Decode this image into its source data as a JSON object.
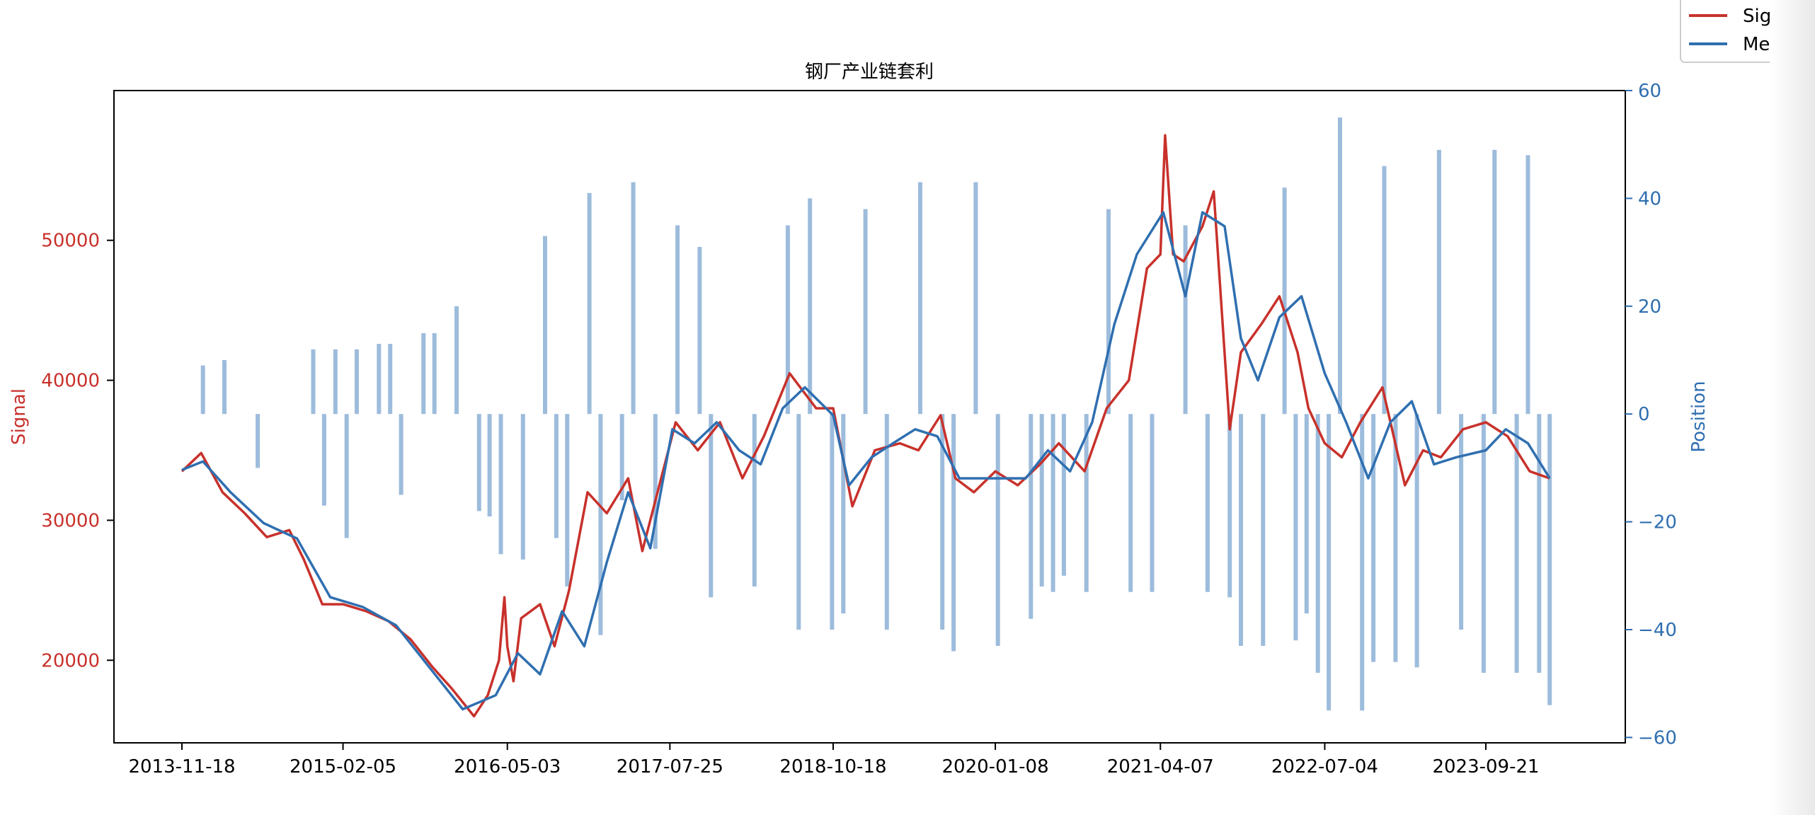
{
  "chart_data": {
    "type": "line",
    "title": "钢厂产业链套利",
    "ylabel": "Signal",
    "y2label": "Position",
    "ylim": [
      14100,
      60700
    ],
    "y2lim": [
      -61,
      60
    ],
    "y_ticks": [
      "20000",
      "30000",
      "40000",
      "50000"
    ],
    "y2_ticks": [
      "60",
      "40",
      "20",
      "0",
      "−20",
      "−40",
      "−60"
    ],
    "x_ticks": [
      "2013-11-18",
      "2015-02-05",
      "2016-05-03",
      "2017-07-25",
      "2018-10-18",
      "2020-01-08",
      "2021-04-07",
      "2022-07-04",
      "2023-09-21"
    ],
    "grid": false,
    "legend_position": "top-right",
    "colors": {
      "signal": "#c8312b",
      "mean": "#2f6fb0",
      "position": "#5b8fc4"
    },
    "series": [
      {
        "name": "Signal",
        "x": [
          "2013-11-18",
          "2014-01-10",
          "2014-03-10",
          "2014-05-10",
          "2014-07-10",
          "2014-09-10",
          "2014-10-20",
          "2014-12-10",
          "2015-02-05",
          "2015-04-10",
          "2015-06-10",
          "2015-08-10",
          "2015-10-10",
          "2015-12-01",
          "2016-02-01",
          "2016-03-10",
          "2016-04-10",
          "2016-04-25",
          "2016-05-03",
          "2016-05-20",
          "2016-06-10",
          "2016-08-01",
          "2016-09-10",
          "2016-10-20",
          "2016-12-10",
          "2017-02-01",
          "2017-04-01",
          "2017-05-10",
          "2017-07-01",
          "2017-08-10",
          "2017-10-10",
          "2017-12-10",
          "2018-02-10",
          "2018-04-10",
          "2018-06-20",
          "2018-09-01",
          "2018-10-18",
          "2018-12-10",
          "2019-02-10",
          "2019-04-20",
          "2019-06-10",
          "2019-08-10",
          "2019-09-20",
          "2019-11-10",
          "2020-01-08",
          "2020-03-10",
          "2020-05-10",
          "2020-07-01",
          "2020-09-10",
          "2020-11-10",
          "2021-01-10",
          "2021-03-01",
          "2021-04-07",
          "2021-04-20",
          "2021-05-12",
          "2021-06-10",
          "2021-08-01",
          "2021-09-01",
          "2021-10-15",
          "2021-11-15",
          "2022-01-10",
          "2022-03-01",
          "2022-04-20",
          "2022-05-20",
          "2022-07-04",
          "2022-08-20",
          "2022-10-10",
          "2022-12-10",
          "2023-02-10",
          "2023-04-01",
          "2023-05-20",
          "2023-07-20",
          "2023-09-21",
          "2023-11-20",
          "2024-01-20",
          "2024-03-15"
        ],
        "values": [
          33500,
          34800,
          32000,
          30500,
          28800,
          29300,
          27200,
          24000,
          24000,
          23500,
          22800,
          21500,
          19500,
          18000,
          16000,
          17500,
          20000,
          24500,
          21000,
          18500,
          23000,
          24000,
          21000,
          25000,
          32000,
          30500,
          33000,
          27800,
          33000,
          37000,
          35000,
          37000,
          33000,
          36000,
          40500,
          38000,
          38000,
          31000,
          35000,
          35500,
          35000,
          37500,
          33000,
          32000,
          33500,
          32500,
          34000,
          35500,
          33500,
          38000,
          40000,
          48000,
          49000,
          57500,
          49000,
          48500,
          51000,
          53500,
          36500,
          42000,
          44000,
          46000,
          42000,
          38000,
          35500,
          34500,
          37000,
          39500,
          32500,
          35000,
          34500,
          36500,
          37000,
          36000,
          33500,
          33000
        ]
      },
      {
        "name": "Mean",
        "x": [
          "2013-11-18",
          "2014-01-15",
          "2014-04-01",
          "2014-07-01",
          "2014-10-01",
          "2015-01-01",
          "2015-04-01",
          "2015-07-01",
          "2015-10-01",
          "2016-01-01",
          "2016-04-01",
          "2016-06-01",
          "2016-08-01",
          "2016-10-01",
          "2016-12-01",
          "2017-02-01",
          "2017-04-01",
          "2017-06-01",
          "2017-08-01",
          "2017-10-01",
          "2017-12-01",
          "2018-02-01",
          "2018-04-01",
          "2018-06-01",
          "2018-08-01",
          "2018-10-18",
          "2018-12-01",
          "2019-02-01",
          "2019-04-01",
          "2019-06-01",
          "2019-08-01",
          "2019-10-01",
          "2019-12-01",
          "2020-02-01",
          "2020-04-01",
          "2020-06-01",
          "2020-08-01",
          "2020-10-01",
          "2020-12-01",
          "2021-02-01",
          "2021-04-15",
          "2021-06-15",
          "2021-08-01",
          "2021-10-01",
          "2021-11-15",
          "2022-01-01",
          "2022-03-01",
          "2022-05-01",
          "2022-07-04",
          "2022-09-01",
          "2022-11-01",
          "2023-01-01",
          "2023-03-01",
          "2023-05-01",
          "2023-07-01",
          "2023-09-21",
          "2023-11-15",
          "2024-01-15",
          "2024-03-15"
        ],
        "values": [
          33600,
          34200,
          32000,
          29800,
          28700,
          24500,
          23800,
          22500,
          19500,
          16500,
          17500,
          20500,
          19000,
          23500,
          21000,
          27000,
          32000,
          28000,
          36500,
          35500,
          37000,
          35000,
          34000,
          38000,
          39500,
          37500,
          32500,
          34500,
          35500,
          36500,
          36000,
          33000,
          33000,
          33000,
          33000,
          35000,
          33500,
          37000,
          44000,
          49000,
          52000,
          46000,
          52000,
          51000,
          43000,
          40000,
          44500,
          46000,
          40500,
          37000,
          33000,
          37000,
          38500,
          34000,
          34500,
          35000,
          36500,
          35500,
          33000
        ]
      },
      {
        "name": "Position",
        "x": [
          "2014-01",
          "2014-03",
          "2014-06",
          "2014-11",
          "2014-12",
          "2015-01",
          "2015-02",
          "2015-03",
          "2015-05",
          "2015-06",
          "2015-07",
          "2015-09",
          "2015-10",
          "2015-12",
          "2016-02",
          "2016-03",
          "2016-04",
          "2016-06",
          "2016-08",
          "2016-09",
          "2016-10",
          "2016-12",
          "2017-01",
          "2017-03",
          "2017-04",
          "2017-06",
          "2017-08",
          "2017-10",
          "2017-11",
          "2018-03",
          "2018-06",
          "2018-07",
          "2018-08",
          "2018-10",
          "2018-11",
          "2019-01",
          "2019-03",
          "2019-06",
          "2019-08",
          "2019-09",
          "2019-11",
          "2020-01",
          "2020-04",
          "2020-05",
          "2020-06",
          "2020-07",
          "2020-09",
          "2020-11",
          "2021-01",
          "2021-03",
          "2021-06",
          "2021-08",
          "2021-10",
          "2021-11",
          "2022-01",
          "2022-03",
          "2022-04",
          "2022-05",
          "2022-06",
          "2022-07",
          "2022-08",
          "2022-10",
          "2022-11",
          "2022-12",
          "2023-01",
          "2023-03",
          "2023-05",
          "2023-07",
          "2023-09",
          "2023-10",
          "2023-12",
          "2024-01",
          "2024-02",
          "2024-03"
        ],
        "values": [
          9,
          10,
          -10,
          12,
          -17,
          12,
          -23,
          12,
          13,
          13,
          -15,
          15,
          15,
          20,
          -18,
          -19,
          -26,
          -27,
          33,
          -23,
          -32,
          41,
          -41,
          -16,
          43,
          -25,
          35,
          31,
          -34,
          -32,
          35,
          -40,
          40,
          -40,
          -37,
          38,
          -40,
          43,
          -40,
          -44,
          43,
          -43,
          -38,
          -32,
          -33,
          -30,
          -33,
          38,
          -33,
          -33,
          35,
          -33,
          -34,
          -43,
          -43,
          42,
          -42,
          -37,
          -48,
          -55,
          55,
          -55,
          -46,
          46,
          -46,
          -47,
          49,
          -40,
          -48,
          49,
          -48,
          48,
          -48,
          -54
        ]
      }
    ],
    "legend": [
      "Signal",
      "Mean"
    ]
  }
}
